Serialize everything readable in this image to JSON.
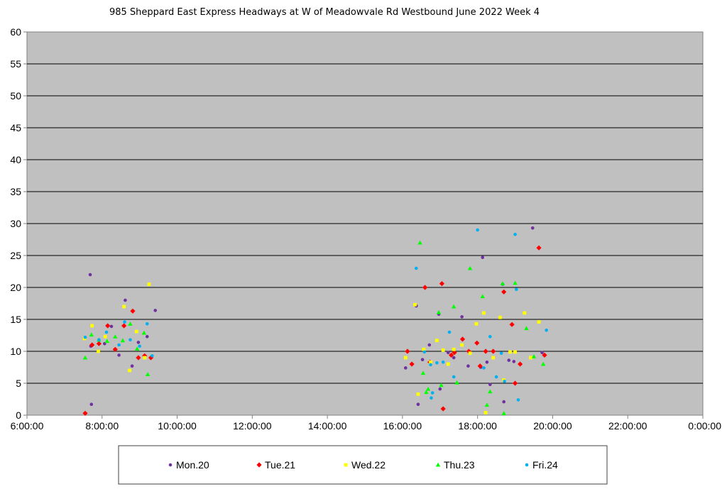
{
  "chart_data": {
    "type": "scatter",
    "title": "985 Sheppard East Express Headways at W of Meadowvale Rd Westbound June 2022  Week 4",
    "xlabel": "",
    "ylabel": "",
    "xlim": [
      "6:00:00",
      "0:00:00"
    ],
    "ylim": [
      0,
      60
    ],
    "x_ticks": [
      "6:00:00",
      "8:00:00",
      "10:00:00",
      "12:00:00",
      "14:00:00",
      "16:00:00",
      "18:00:00",
      "20:00:00",
      "22:00:00",
      "0:00:00"
    ],
    "y_ticks": [
      "0",
      "5",
      "10",
      "15",
      "20",
      "25",
      "30",
      "35",
      "40",
      "45",
      "50",
      "55",
      "60"
    ],
    "grid": "horizontal",
    "legend_position": "bottom",
    "series": [
      {
        "name": "Mon.20",
        "color": "#7030a0",
        "marker": "circle",
        "points": [
          [
            "7:41",
            22
          ],
          [
            "7:42",
            10.8
          ],
          [
            "7:43",
            1.7
          ],
          [
            "8:04",
            11.2
          ],
          [
            "8:15",
            13.9
          ],
          [
            "8:27",
            9.4
          ],
          [
            "8:37",
            18
          ],
          [
            "8:48",
            7.7
          ],
          [
            "8:58",
            11.4
          ],
          [
            "9:12",
            12.3
          ],
          [
            "9:25",
            16.4
          ],
          [
            "16:05",
            7.4
          ],
          [
            "16:22",
            17.1
          ],
          [
            "16:25",
            1.7
          ],
          [
            "16:32",
            8.7
          ],
          [
            "16:43",
            11
          ],
          [
            "16:58",
            15.8
          ],
          [
            "17:00",
            4.1
          ],
          [
            "17:13",
            9.8
          ],
          [
            "17:22",
            9
          ],
          [
            "17:35",
            15.4
          ],
          [
            "17:45",
            7.7
          ],
          [
            "18:05",
            7.5
          ],
          [
            "18:08",
            24.7
          ],
          [
            "18:15",
            8.3
          ],
          [
            "18:20",
            4.8
          ],
          [
            "18:40",
            20.5
          ],
          [
            "18:42",
            2.1
          ],
          [
            "18:50",
            8.6
          ],
          [
            "18:58",
            8.4
          ],
          [
            "19:28",
            29.3
          ],
          [
            "19:43",
            9.8
          ]
        ]
      },
      {
        "name": "Tue.21",
        "color": "#ff0000",
        "marker": "diamond",
        "points": [
          [
            "7:33",
            0.3
          ],
          [
            "7:44",
            11
          ],
          [
            "7:55",
            11.2
          ],
          [
            "8:09",
            14
          ],
          [
            "8:21",
            10.3
          ],
          [
            "8:35",
            14
          ],
          [
            "8:49",
            16.3
          ],
          [
            "8:58",
            9
          ],
          [
            "9:08",
            9.3
          ],
          [
            "9:18",
            9
          ],
          [
            "16:08",
            10
          ],
          [
            "16:15",
            8
          ],
          [
            "16:36",
            20
          ],
          [
            "16:44",
            8.3
          ],
          [
            "17:03",
            20.6
          ],
          [
            "17:05",
            1
          ],
          [
            "17:18",
            9.4
          ],
          [
            "17:23",
            9.8
          ],
          [
            "17:36",
            11.9
          ],
          [
            "17:46",
            10
          ],
          [
            "17:59",
            11.3
          ],
          [
            "18:04",
            7.7
          ],
          [
            "18:13",
            10
          ],
          [
            "18:25",
            10
          ],
          [
            "18:42",
            19.3
          ],
          [
            "18:55",
            14.2
          ],
          [
            "19:00",
            5
          ],
          [
            "19:08",
            8
          ],
          [
            "19:38",
            26.2
          ],
          [
            "19:47",
            9.4
          ]
        ]
      },
      {
        "name": "Wed.22",
        "color": "#ffff00",
        "marker": "square",
        "points": [
          [
            "7:32",
            12
          ],
          [
            "7:44",
            14
          ],
          [
            "7:54",
            10
          ],
          [
            "8:05",
            12.3
          ],
          [
            "8:35",
            17
          ],
          [
            "8:44",
            7
          ],
          [
            "8:55",
            13.1
          ],
          [
            "9:08",
            9
          ],
          [
            "9:15",
            20.5
          ],
          [
            "16:05",
            9
          ],
          [
            "16:20",
            17.3
          ],
          [
            "16:25",
            3.3
          ],
          [
            "16:34",
            10.3
          ],
          [
            "16:45",
            8.3
          ],
          [
            "16:55",
            11.7
          ],
          [
            "17:05",
            10.2
          ],
          [
            "17:13",
            8
          ],
          [
            "17:22",
            10.3
          ],
          [
            "17:35",
            11
          ],
          [
            "17:48",
            9.7
          ],
          [
            "17:58",
            14.3
          ],
          [
            "18:10",
            16
          ],
          [
            "18:13",
            0.4
          ],
          [
            "18:25",
            9
          ],
          [
            "18:36",
            15.3
          ],
          [
            "18:42",
            5.5
          ],
          [
            "18:52",
            9.9
          ],
          [
            "19:00",
            9.9
          ],
          [
            "19:15",
            16
          ],
          [
            "19:25",
            9
          ],
          [
            "19:38",
            14.6
          ]
        ]
      },
      {
        "name": "Thu.23",
        "color": "#00ff00",
        "marker": "triangle",
        "points": [
          [
            "7:33",
            9
          ],
          [
            "7:43",
            12.6
          ],
          [
            "7:55",
            11.8
          ],
          [
            "8:08",
            11.6
          ],
          [
            "8:21",
            12.3
          ],
          [
            "8:33",
            11.7
          ],
          [
            "8:45",
            14.3
          ],
          [
            "8:56",
            10.4
          ],
          [
            "9:07",
            12.9
          ],
          [
            "9:13",
            6.4
          ],
          [
            "16:28",
            27
          ],
          [
            "16:33",
            6.6
          ],
          [
            "16:38",
            3.6
          ],
          [
            "16:41",
            4.1
          ],
          [
            "16:58",
            16.1
          ],
          [
            "17:02",
            4.7
          ],
          [
            "17:22",
            17
          ],
          [
            "17:27",
            5.1
          ],
          [
            "17:48",
            23
          ],
          [
            "18:08",
            18.6
          ],
          [
            "18:15",
            1.6
          ],
          [
            "18:20",
            3.7
          ],
          [
            "18:40",
            20.6
          ],
          [
            "18:42",
            0.3
          ],
          [
            "19:00",
            20.7
          ],
          [
            "19:18",
            13.6
          ],
          [
            "19:30",
            9.2
          ],
          [
            "19:45",
            8
          ]
        ]
      },
      {
        "name": "Fri.24",
        "color": "#00b0f0",
        "marker": "circle",
        "points": [
          [
            "7:33",
            12.2
          ],
          [
            "7:55",
            11.8
          ],
          [
            "8:07",
            13
          ],
          [
            "8:27",
            11
          ],
          [
            "8:36",
            14.6
          ],
          [
            "8:45",
            11.8
          ],
          [
            "9:00",
            10.8
          ],
          [
            "9:12",
            14.3
          ],
          [
            "9:20",
            9.3
          ],
          [
            "16:22",
            23
          ],
          [
            "16:35",
            9.9
          ],
          [
            "16:45",
            7.9
          ],
          [
            "16:46",
            2.7
          ],
          [
            "16:48",
            3.5
          ],
          [
            "16:55",
            8.2
          ],
          [
            "17:05",
            8.3
          ],
          [
            "17:15",
            13
          ],
          [
            "17:22",
            6
          ],
          [
            "18:00",
            29
          ],
          [
            "18:10",
            7.4
          ],
          [
            "18:20",
            12.3
          ],
          [
            "18:30",
            6
          ],
          [
            "18:38",
            9.7
          ],
          [
            "18:43",
            5.3
          ],
          [
            "19:00",
            28.3
          ],
          [
            "19:02",
            19.7
          ],
          [
            "19:05",
            2.4
          ],
          [
            "19:50",
            13.3
          ]
        ]
      }
    ]
  }
}
